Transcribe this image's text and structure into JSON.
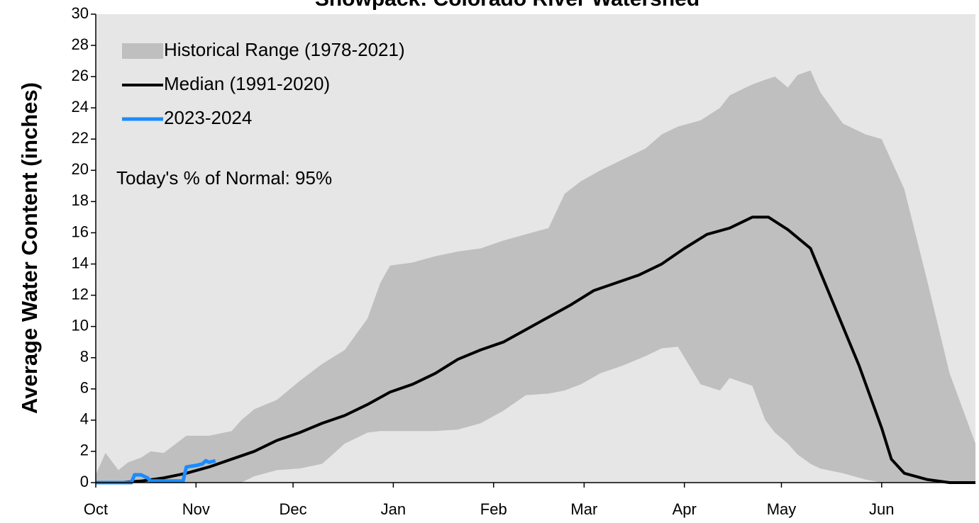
{
  "chart_data": {
    "type": "line",
    "title": "Snowpack: Colorado River Watershed",
    "y_label": "Average Water Content (inches)",
    "annotation": "Today's % of Normal: 95%",
    "legend": "upper left",
    "xlim": [
      0,
      272
    ],
    "xticks": [
      {
        "value": 0,
        "label": "Oct"
      },
      {
        "value": 31,
        "label": "Nov"
      },
      {
        "value": 61,
        "label": "Dec"
      },
      {
        "value": 92,
        "label": "Jan"
      },
      {
        "value": 123,
        "label": "Feb"
      },
      {
        "value": 151,
        "label": "Mar"
      },
      {
        "value": 182,
        "label": "Apr"
      },
      {
        "value": 212,
        "label": "May"
      },
      {
        "value": 243,
        "label": "Jun"
      }
    ],
    "ylim": [
      0,
      30
    ],
    "yticks": [
      0,
      2,
      4,
      6,
      8,
      10,
      12,
      14,
      16,
      18,
      20,
      22,
      24,
      26,
      28,
      30
    ],
    "series": [
      {
        "name": "Historical Range (1978-2021)",
        "type": "band",
        "color": "#bfbfbf",
        "x": [
          0,
          3,
          7,
          10,
          14,
          17,
          21,
          28,
          35,
          42,
          45,
          49,
          56,
          63,
          70,
          77,
          84,
          88,
          91,
          98,
          105,
          112,
          119,
          126,
          133,
          140,
          145,
          150,
          156,
          163,
          170,
          175,
          180,
          187,
          193,
          196,
          203,
          207,
          210,
          214,
          217,
          221,
          224,
          231,
          238,
          243,
          250,
          257,
          264,
          272
        ],
        "high": [
          0.5,
          1.9,
          0.8,
          1.3,
          1.6,
          2.0,
          1.9,
          3.0,
          3.0,
          3.3,
          4.0,
          4.7,
          5.3,
          6.5,
          7.6,
          8.5,
          10.5,
          12.8,
          13.9,
          14.1,
          14.5,
          14.8,
          15.0,
          15.5,
          15.9,
          16.3,
          18.5,
          19.3,
          20.0,
          20.7,
          21.4,
          22.3,
          22.8,
          23.2,
          24.0,
          24.8,
          25.5,
          25.8,
          26.0,
          25.3,
          26.1,
          26.4,
          25.0,
          23.0,
          22.3,
          22.0,
          18.8,
          13.0,
          7.0,
          2.5
        ],
        "low": [
          0,
          0,
          0,
          0,
          0,
          0,
          0,
          0,
          0,
          0,
          0,
          0.4,
          0.8,
          0.9,
          1.2,
          2.5,
          3.2,
          3.3,
          3.3,
          3.3,
          3.3,
          3.4,
          3.8,
          4.6,
          5.6,
          5.7,
          5.9,
          6.3,
          7.0,
          7.5,
          8.1,
          8.6,
          8.7,
          6.3,
          5.9,
          6.7,
          6.2,
          4.0,
          3.2,
          2.5,
          1.8,
          1.2,
          0.9,
          0.6,
          0.2,
          0,
          0,
          0,
          0,
          0
        ]
      },
      {
        "name": "Median (1991-2020)",
        "type": "line",
        "color": "#000000",
        "x": [
          0,
          7,
          14,
          21,
          28,
          35,
          42,
          49,
          56,
          63,
          70,
          77,
          84,
          91,
          98,
          105,
          112,
          119,
          126,
          133,
          140,
          147,
          154,
          161,
          168,
          175,
          182,
          189,
          196,
          203,
          208,
          214,
          221,
          224,
          230,
          236,
          243,
          246,
          250,
          257,
          264,
          272
        ],
        "values": [
          0,
          0,
          0.1,
          0.3,
          0.6,
          1.0,
          1.5,
          2.0,
          2.7,
          3.2,
          3.8,
          4.3,
          5.0,
          5.8,
          6.3,
          7.0,
          7.9,
          8.5,
          9.0,
          9.8,
          10.6,
          11.4,
          12.3,
          12.8,
          13.3,
          14.0,
          15.0,
          15.9,
          16.3,
          17.0,
          17.0,
          16.2,
          15.0,
          13.5,
          10.5,
          7.5,
          3.5,
          1.5,
          0.6,
          0.2,
          0,
          0
        ]
      },
      {
        "name": "2023-2024",
        "type": "line",
        "color": "#1a8cff",
        "x": [
          0,
          11,
          12,
          14,
          16,
          17,
          27,
          28,
          31,
          33,
          34,
          35,
          37
        ],
        "values": [
          0,
          0,
          0.5,
          0.5,
          0.3,
          0.1,
          0.1,
          1.0,
          1.1,
          1.2,
          1.4,
          1.3,
          1.4
        ]
      }
    ]
  }
}
